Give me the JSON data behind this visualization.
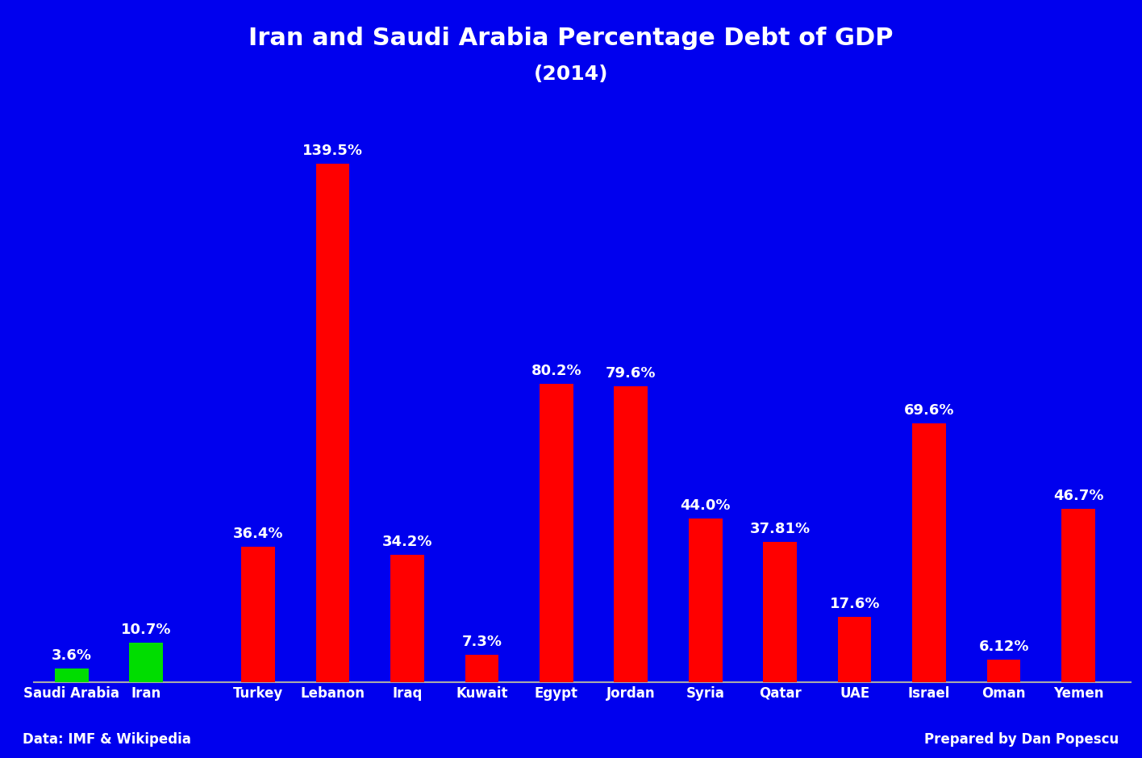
{
  "title_line1": "Iran and Saudi Arabia Percentage Debt of GDP",
  "title_line2": "(2014)",
  "categories": [
    "Saudi Arabia",
    "Iran",
    "Turkey",
    "Lebanon",
    "Iraq",
    "Kuwait",
    "Egypt",
    "Jordan",
    "Syria",
    "Qatar",
    "UAE",
    "Israel",
    "Oman",
    "Yemen"
  ],
  "values": [
    3.6,
    10.7,
    36.4,
    139.5,
    34.2,
    7.3,
    80.2,
    79.6,
    44.0,
    37.81,
    17.6,
    69.6,
    6.12,
    46.7
  ],
  "labels": [
    "3.6%",
    "10.7%",
    "36.4%",
    "139.5%",
    "34.2%",
    "7.3%",
    "80.2%",
    "79.6%",
    "44.0%",
    "37.81%",
    "17.6%",
    "69.6%",
    "6.12%",
    "46.7%"
  ],
  "bar_colors": [
    "#00dd00",
    "#00dd00",
    "#ff0000",
    "#ff0000",
    "#ff0000",
    "#ff0000",
    "#ff0000",
    "#ff0000",
    "#ff0000",
    "#ff0000",
    "#ff0000",
    "#ff0000",
    "#ff0000",
    "#ff0000"
  ],
  "background_color": "#0000ee",
  "text_color": "#ffffff",
  "axis_line_color": "#aaaaaa",
  "footer_left": "Data: IMF & Wikipedia",
  "footer_right": "Prepared by Dan Popescu",
  "ylim": [
    0,
    155
  ],
  "title_fontsize": 22,
  "subtitle_fontsize": 18,
  "label_fontsize": 13,
  "tick_fontsize": 12,
  "footer_fontsize": 12,
  "bar_width": 0.45
}
